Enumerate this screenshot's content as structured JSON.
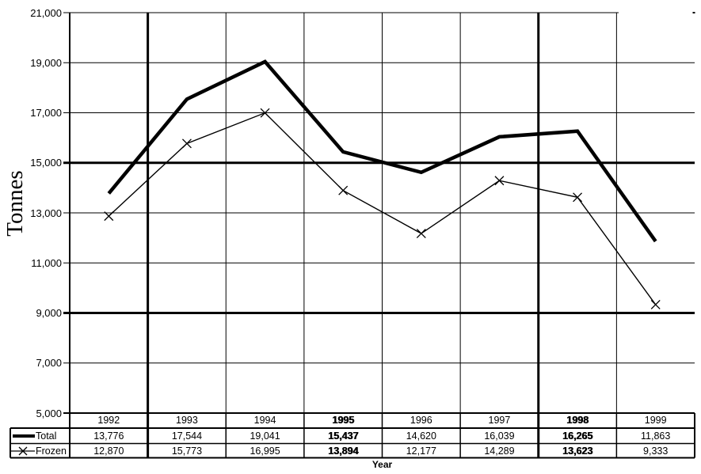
{
  "chart_data": {
    "type": "line",
    "title": "",
    "xlabel": "Year",
    "ylabel": "Tonnes",
    "categories": [
      "1992",
      "1993",
      "1994",
      "1995",
      "1996",
      "1997",
      "1998",
      "1999"
    ],
    "series": [
      {
        "name": "Total",
        "values": [
          13776,
          17544,
          19041,
          15437,
          14620,
          16039,
          16265,
          11863
        ],
        "display": [
          "13,776",
          "17,544",
          "19,041",
          "15,437",
          "14,620",
          "16,039",
          "16,265",
          "11,863"
        ],
        "line_style": "thick-solid",
        "marker": "none"
      },
      {
        "name": "Frozen",
        "values": [
          12870,
          15773,
          16995,
          13894,
          12177,
          14289,
          13623,
          9333
        ],
        "display": [
          "12,870",
          "15,773",
          "16,995",
          "13,894",
          "12,177",
          "14,289",
          "13,623",
          "9,333"
        ],
        "line_style": "thin-solid",
        "marker": "x"
      }
    ],
    "ylim": [
      5000,
      21000
    ],
    "ytick_step": 2000,
    "ytick_labels": [
      "21,000",
      "19,000",
      "17,000",
      "15,000",
      "13,000",
      "11,000",
      "9,000",
      "7,000",
      "5,000"
    ],
    "grid": "both",
    "legend_position": "table-left-column",
    "thick_horizontal_gridlines": [
      15000,
      9000
    ],
    "thick_vertical_gridlines_after": [
      "1992",
      "1997"
    ],
    "bold_value_columns": [
      "1995",
      "1998"
    ]
  },
  "colors": {
    "foreground": "#000000",
    "background": "#ffffff"
  }
}
